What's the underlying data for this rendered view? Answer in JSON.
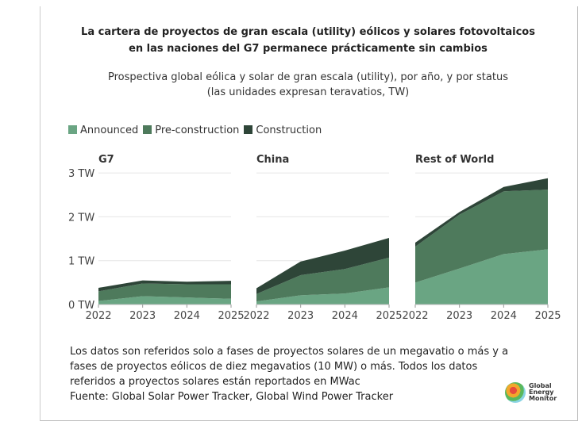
{
  "title_lines": [
    "La cartera de proyectos de gran escala (utility)  eólicos y solares fotovoltaicos",
    "en las naciones del G7 permanece  prácticamente sin cambios"
  ],
  "subtitle_lines": [
    "Prospectiva global eólica y solar de gran escala (utility), por año, y por status",
    "(las unidades expresan teravatios, TW)"
  ],
  "footnote_lines": [
    "Los datos son referidos solo a fases de proyectos solares de un megavatio o más y a fases de proyectos eólicos de diez megavatios (10 MW) o más. Todos los datos referidos a proyectos solares están reportados en MWac",
    "Fuente: Global Solar Power Tracker, Global Wind Power Tracker"
  ],
  "logo_text": "Global Energy Monitor",
  "chart_data": {
    "type": "area",
    "stacked": true,
    "x": [
      "2022",
      "2023",
      "2024",
      "2025"
    ],
    "ylim": [
      0,
      3
    ],
    "yticks": [
      0,
      1,
      2,
      3
    ],
    "ytick_labels": [
      "0 TW",
      "1 TW",
      "2 TW",
      "3 TW"
    ],
    "grid": true,
    "legend_placement": "top-left",
    "series_meta": [
      {
        "name": "Announced",
        "color": "#6aa583"
      },
      {
        "name": "Pre-construction",
        "color": "#4e7a5c"
      },
      {
        "name": "Construction",
        "color": "#2e4538"
      }
    ],
    "panels": [
      {
        "title": "G7",
        "series": [
          {
            "name": "Announced",
            "values": [
              0.08,
              0.19,
              0.16,
              0.13
            ]
          },
          {
            "name": "Pre-construction",
            "values": [
              0.22,
              0.29,
              0.3,
              0.33
            ]
          },
          {
            "name": "Construction",
            "values": [
              0.08,
              0.07,
              0.06,
              0.08
            ]
          }
        ]
      },
      {
        "title": "China",
        "series": [
          {
            "name": "Announced",
            "values": [
              0.07,
              0.21,
              0.25,
              0.39
            ]
          },
          {
            "name": "Pre-construction",
            "values": [
              0.17,
              0.46,
              0.56,
              0.68
            ]
          },
          {
            "name": "Construction",
            "values": [
              0.13,
              0.31,
              0.42,
              0.45
            ]
          }
        ]
      },
      {
        "title": "Rest of World",
        "series": [
          {
            "name": "Announced",
            "values": [
              0.5,
              0.82,
              1.15,
              1.26
            ]
          },
          {
            "name": "Pre-construction",
            "values": [
              0.82,
              1.23,
              1.43,
              1.36
            ]
          },
          {
            "name": "Construction",
            "values": [
              0.09,
              0.06,
              0.1,
              0.26
            ]
          }
        ]
      }
    ]
  }
}
